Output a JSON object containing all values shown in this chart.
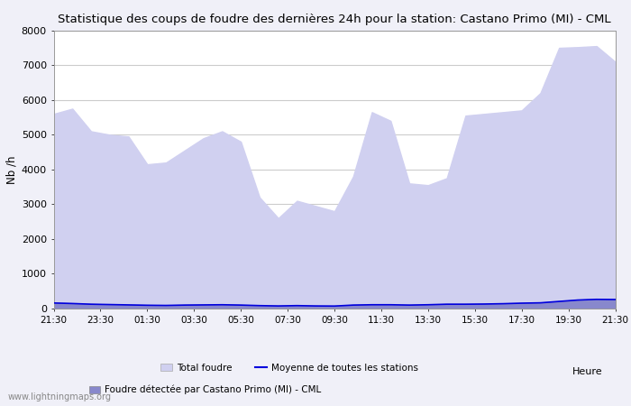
{
  "title": "Statistique des coups de foudre des dernières 24h pour la station: Castano Primo (MI) - CML",
  "ylabel": "Nb /h",
  "xlabel": "Heure",
  "ylim": [
    0,
    8000
  ],
  "yticks": [
    0,
    1000,
    2000,
    3000,
    4000,
    5000,
    6000,
    7000,
    8000
  ],
  "x_labels": [
    "21:30",
    "23:30",
    "01:30",
    "03:30",
    "05:30",
    "07:30",
    "09:30",
    "11:30",
    "13:30",
    "15:30",
    "17:30",
    "19:30",
    "21:30"
  ],
  "background_color": "#f0f0f8",
  "plot_bg_color": "#ffffff",
  "grid_color": "#cccccc",
  "total_foudre_color": "#d0d0f0",
  "detected_color": "#8888cc",
  "moyenne_color": "#0000dd",
  "watermark": "www.lightningmaps.org",
  "total_foudre": [
    5600,
    5750,
    5100,
    5000,
    4950,
    4150,
    4200,
    4550,
    4900,
    5100,
    4800,
    3200,
    2600,
    3100,
    2950,
    2800,
    3800,
    5650,
    5400,
    3600,
    3550,
    3750,
    5550,
    5600,
    5650,
    5700,
    6200,
    7500,
    7520,
    7550,
    7100
  ],
  "detected": [
    170,
    150,
    130,
    120,
    110,
    100,
    95,
    105,
    110,
    115,
    105,
    90,
    80,
    90,
    80,
    75,
    105,
    115,
    115,
    105,
    115,
    130,
    130,
    135,
    145,
    160,
    170,
    210,
    250,
    275,
    270
  ],
  "moyenne": [
    160,
    145,
    125,
    115,
    105,
    95,
    90,
    100,
    105,
    110,
    100,
    85,
    75,
    85,
    75,
    72,
    100,
    110,
    110,
    100,
    110,
    125,
    125,
    130,
    140,
    155,
    165,
    205,
    245,
    265,
    260
  ]
}
